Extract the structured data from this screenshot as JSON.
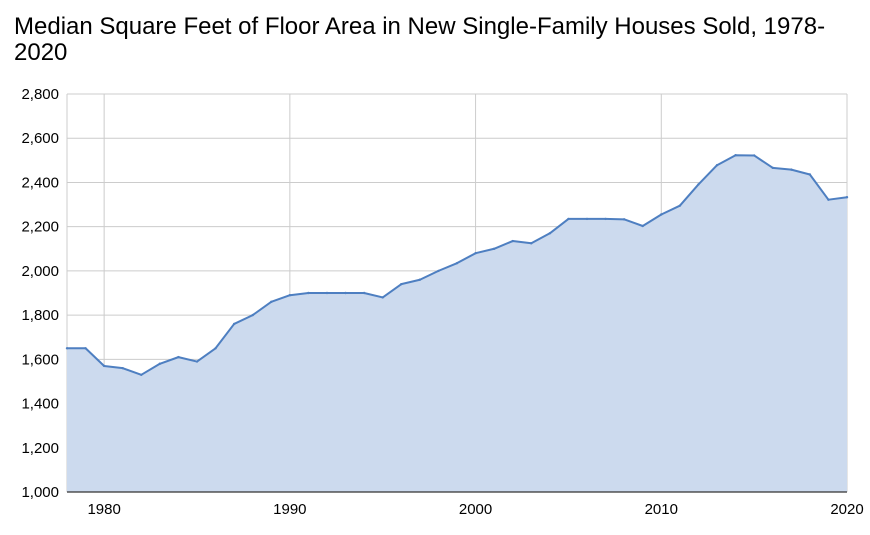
{
  "chart_data": {
    "type": "area",
    "title": "Median Square Feet of Floor Area in New Single-Family Houses Sold, 1978-2020",
    "xlabel": "",
    "ylabel": "",
    "xlim": [
      1978,
      2020
    ],
    "ylim": [
      1000,
      2800
    ],
    "xticks": [
      1980,
      1990,
      2000,
      2010,
      2020
    ],
    "yticks": [
      1000,
      1200,
      1400,
      1600,
      1800,
      2000,
      2200,
      2400,
      2600,
      2800
    ],
    "ytick_labels": [
      "1,000",
      "1,200",
      "1,400",
      "1,600",
      "1,800",
      "2,000",
      "2,200",
      "2,400",
      "2,600",
      "2,800"
    ],
    "grid": true,
    "legend": "none",
    "colors": {
      "line": "#4e7fc1",
      "fill": "#ccdaee",
      "grid": "#cccccc"
    },
    "x": [
      1978,
      1979,
      1980,
      1981,
      1982,
      1983,
      1984,
      1985,
      1986,
      1987,
      1988,
      1989,
      1990,
      1991,
      1992,
      1993,
      1994,
      1995,
      1996,
      1997,
      1998,
      1999,
      2000,
      2001,
      2002,
      2003,
      2004,
      2005,
      2006,
      2007,
      2008,
      2009,
      2010,
      2011,
      2012,
      2013,
      2014,
      2015,
      2016,
      2017,
      2018,
      2019,
      2020
    ],
    "values": [
      1650,
      1650,
      1570,
      1560,
      1530,
      1580,
      1610,
      1590,
      1650,
      1760,
      1800,
      1860,
      1890,
      1900,
      1900,
      1900,
      1900,
      1880,
      1940,
      1960,
      2000,
      2035,
      2080,
      2100,
      2135,
      2125,
      2170,
      2235,
      2235,
      2235,
      2233,
      2203,
      2255,
      2295,
      2391,
      2478,
      2523,
      2522,
      2466,
      2458,
      2436,
      2322,
      2333
    ]
  }
}
